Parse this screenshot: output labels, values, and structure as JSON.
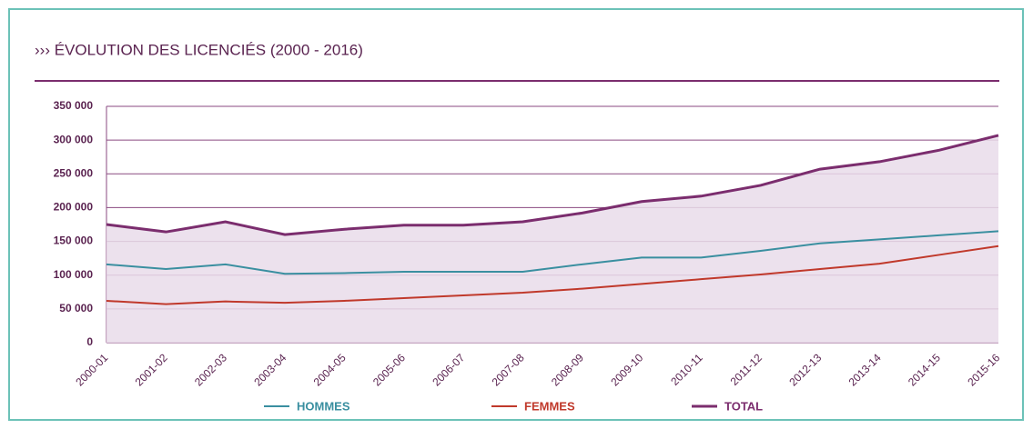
{
  "chart_data": {
    "type": "line",
    "title": "››› ÉVOLUTION DES LICENCIÉS (2000 - 2016)",
    "categories": [
      "2000-01",
      "2001-02",
      "2002-03",
      "2003-04",
      "2004-05",
      "2005-06",
      "2006-07",
      "2007-08",
      "2008-09",
      "2009-10",
      "2010-11",
      "2011-12",
      "2012-13",
      "2013-14",
      "2014-15",
      "2015-16"
    ],
    "series": [
      {
        "name": "HOMMES",
        "color": "#3a8fa0",
        "values": [
          116000,
          109000,
          116000,
          102000,
          103000,
          105000,
          105000,
          105000,
          116000,
          126000,
          126000,
          136000,
          147000,
          153000,
          159000,
          165000
        ]
      },
      {
        "name": "FEMMES",
        "color": "#c0392b",
        "values": [
          62000,
          57000,
          61000,
          59000,
          62000,
          66000,
          70000,
          74000,
          80000,
          87000,
          94000,
          101000,
          109000,
          117000,
          130000,
          143000
        ]
      },
      {
        "name": "TOTAL",
        "color": "#7b2d6e",
        "fill": "#e9dcea",
        "values": [
          175000,
          164000,
          179000,
          160000,
          168000,
          174000,
          174000,
          179000,
          192000,
          209000,
          217000,
          233000,
          257000,
          268000,
          285000,
          307000
        ]
      }
    ],
    "ylim": [
      0,
      350000
    ],
    "yticks": [
      0,
      {
        "value": 50000,
        "label": "50 000"
      },
      {
        "value": 100000,
        "label": "100 000"
      },
      {
        "value": 150000,
        "label": "150 000"
      },
      {
        "value": 200000,
        "label": "200 000"
      },
      {
        "value": 250000,
        "label": "250 000"
      },
      {
        "value": 300000,
        "label": "300 000"
      },
      {
        "value": 350000,
        "label": "350 000"
      }
    ],
    "grid": true
  }
}
